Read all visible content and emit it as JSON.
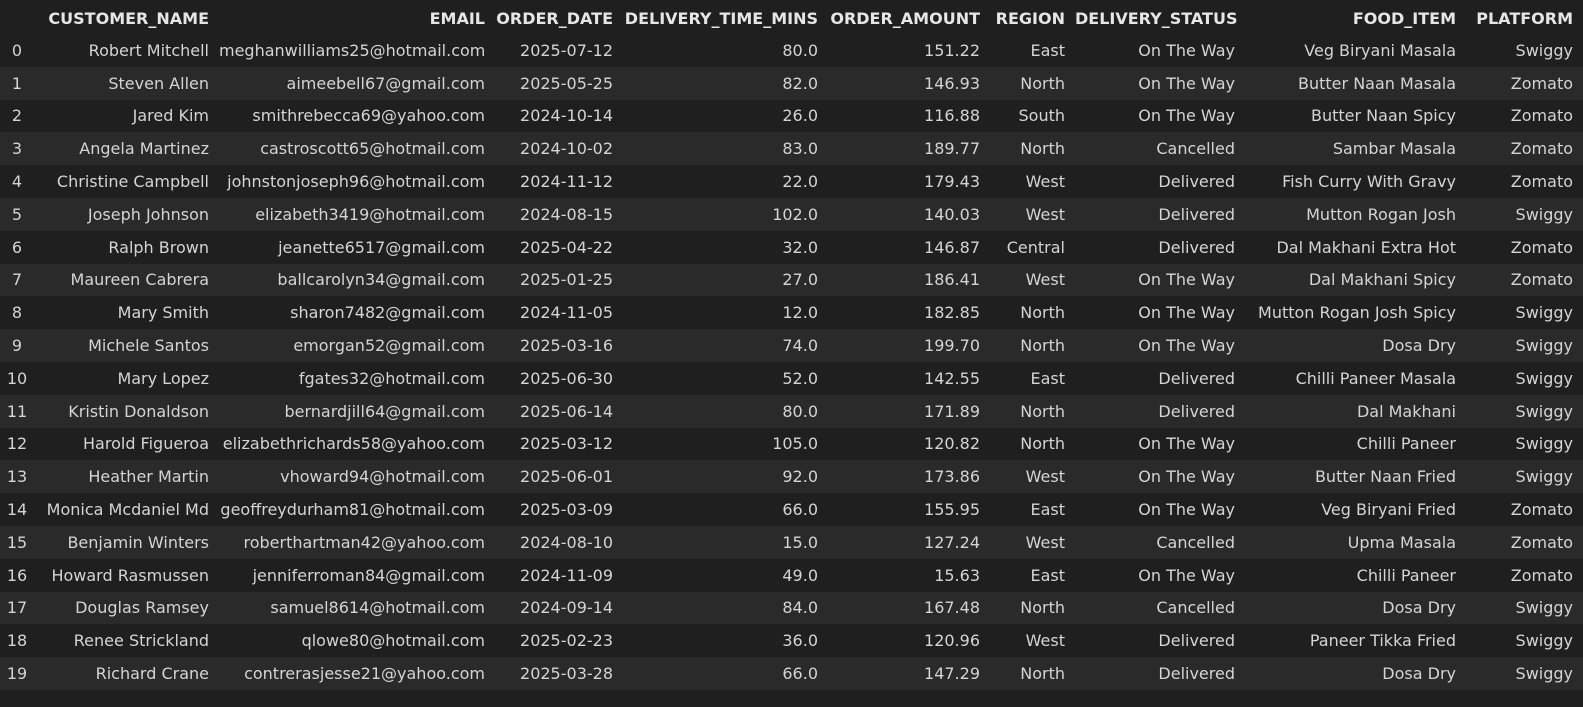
{
  "table": {
    "columns": [
      "",
      "CUSTOMER_NAME",
      "EMAIL",
      "ORDER_DATE",
      "DELIVERY_TIME_MINS",
      "ORDER_AMOUNT",
      "REGION",
      "DELIVERY_STATUS",
      "FOOD_ITEM",
      "PLATFORM"
    ],
    "rows": [
      [
        "0",
        "Robert Mitchell",
        "meghanwilliams25@hotmail.com",
        "2025-07-12",
        "80.0",
        "151.22",
        "East",
        "On The Way",
        "Veg Biryani Masala",
        "Swiggy"
      ],
      [
        "1",
        "Steven Allen",
        "aimeebell67@gmail.com",
        "2025-05-25",
        "82.0",
        "146.93",
        "North",
        "On The Way",
        "Butter Naan Masala",
        "Zomato"
      ],
      [
        "2",
        "Jared Kim",
        "smithrebecca69@yahoo.com",
        "2024-10-14",
        "26.0",
        "116.88",
        "South",
        "On The Way",
        "Butter Naan Spicy",
        "Zomato"
      ],
      [
        "3",
        "Angela Martinez",
        "castroscott65@hotmail.com",
        "2024-10-02",
        "83.0",
        "189.77",
        "North",
        "Cancelled",
        "Sambar Masala",
        "Zomato"
      ],
      [
        "4",
        "Christine Campbell",
        "johnstonjoseph96@hotmail.com",
        "2024-11-12",
        "22.0",
        "179.43",
        "West",
        "Delivered",
        "Fish Curry With Gravy",
        "Zomato"
      ],
      [
        "5",
        "Joseph Johnson",
        "elizabeth3419@hotmail.com",
        "2024-08-15",
        "102.0",
        "140.03",
        "West",
        "Delivered",
        "Mutton Rogan Josh",
        "Swiggy"
      ],
      [
        "6",
        "Ralph Brown",
        "jeanette6517@gmail.com",
        "2025-04-22",
        "32.0",
        "146.87",
        "Central",
        "Delivered",
        "Dal Makhani Extra Hot",
        "Zomato"
      ],
      [
        "7",
        "Maureen Cabrera",
        "ballcarolyn34@gmail.com",
        "2025-01-25",
        "27.0",
        "186.41",
        "West",
        "On The Way",
        "Dal Makhani Spicy",
        "Zomato"
      ],
      [
        "8",
        "Mary Smith",
        "sharon7482@gmail.com",
        "2024-11-05",
        "12.0",
        "182.85",
        "North",
        "On The Way",
        "Mutton Rogan Josh Spicy",
        "Swiggy"
      ],
      [
        "9",
        "Michele Santos",
        "emorgan52@gmail.com",
        "2025-03-16",
        "74.0",
        "199.70",
        "North",
        "On The Way",
        "Dosa Dry",
        "Swiggy"
      ],
      [
        "10",
        "Mary Lopez",
        "fgates32@hotmail.com",
        "2025-06-30",
        "52.0",
        "142.55",
        "East",
        "Delivered",
        "Chilli Paneer Masala",
        "Swiggy"
      ],
      [
        "11",
        "Kristin Donaldson",
        "bernardjill64@gmail.com",
        "2025-06-14",
        "80.0",
        "171.89",
        "North",
        "Delivered",
        "Dal Makhani",
        "Swiggy"
      ],
      [
        "12",
        "Harold Figueroa",
        "elizabethrichards58@yahoo.com",
        "2025-03-12",
        "105.0",
        "120.82",
        "North",
        "On The Way",
        "Chilli Paneer",
        "Swiggy"
      ],
      [
        "13",
        "Heather Martin",
        "vhoward94@hotmail.com",
        "2025-06-01",
        "92.0",
        "173.86",
        "West",
        "On The Way",
        "Butter Naan Fried",
        "Swiggy"
      ],
      [
        "14",
        "Monica Mcdaniel Md",
        "geoffreydurham81@hotmail.com",
        "2025-03-09",
        "66.0",
        "155.95",
        "East",
        "On The Way",
        "Veg Biryani Fried",
        "Zomato"
      ],
      [
        "15",
        "Benjamin Winters",
        "roberthartman42@yahoo.com",
        "2024-08-10",
        "15.0",
        "127.24",
        "West",
        "Cancelled",
        "Upma Masala",
        "Zomato"
      ],
      [
        "16",
        "Howard Rasmussen",
        "jenniferroman84@gmail.com",
        "2024-11-09",
        "49.0",
        "15.63",
        "East",
        "On The Way",
        "Chilli Paneer",
        "Zomato"
      ],
      [
        "17",
        "Douglas Ramsey",
        "samuel8614@hotmail.com",
        "2024-09-14",
        "84.0",
        "167.48",
        "North",
        "Cancelled",
        "Dosa Dry",
        "Swiggy"
      ],
      [
        "18",
        "Renee Strickland",
        "qlowe80@hotmail.com",
        "2025-02-23",
        "36.0",
        "120.96",
        "West",
        "Delivered",
        "Paneer Tikka Fried",
        "Swiggy"
      ],
      [
        "19",
        "Richard Crane",
        "contrerasjesse21@yahoo.com",
        "2025-03-28",
        "66.0",
        "147.29",
        "North",
        "Delivered",
        "Dosa Dry",
        "Swiggy"
      ]
    ]
  },
  "colors": {
    "background": "#1f1f1f",
    "row_stripe": "#2a2a2a",
    "text": "#d4d4d4"
  }
}
